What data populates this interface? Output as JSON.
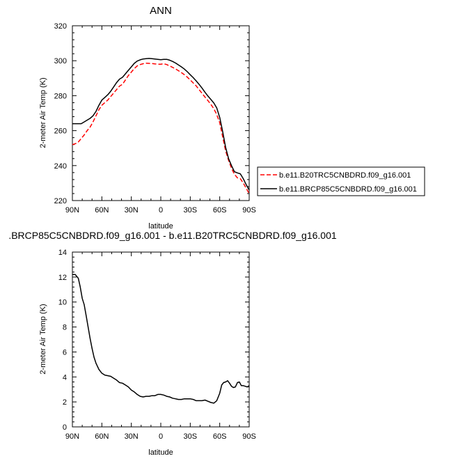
{
  "chart_data": [
    {
      "type": "line",
      "title": "ANN",
      "xlabel": "latitude",
      "ylabel": "2-meter Air Temp (K)",
      "xlim": [
        90,
        -90
      ],
      "ylim": [
        220,
        320
      ],
      "x_ticks": [
        90,
        60,
        30,
        0,
        -30,
        -60,
        -90
      ],
      "x_tick_labels": [
        "90N",
        "60N",
        "30N",
        "0",
        "30S",
        "60S",
        "90S"
      ],
      "y_ticks": [
        220,
        240,
        260,
        280,
        300,
        320
      ],
      "y_tick_labels": [
        "220",
        "240",
        "260",
        "280",
        "300",
        "320"
      ],
      "legend_position": "right",
      "series": [
        {
          "name": "b.e11.B20TRC5CNBDRD.f09_g16.001",
          "color": "#ff0000",
          "dash": "dashed",
          "x": [
            90,
            87,
            84,
            81,
            78,
            75,
            72,
            69,
            66,
            63,
            60,
            57,
            54,
            51,
            48,
            45,
            42,
            39,
            36,
            33,
            30,
            27,
            24,
            21,
            18,
            15,
            12,
            9,
            6,
            3,
            0,
            -3,
            -6,
            -9,
            -12,
            -15,
            -18,
            -21,
            -24,
            -27,
            -30,
            -33,
            -36,
            -39,
            -42,
            -45,
            -48,
            -51,
            -54,
            -57,
            -60,
            -63,
            -66,
            -69,
            -72,
            -75,
            -78,
            -81,
            -84,
            -87,
            -90
          ],
          "y": [
            252,
            252.5,
            253.5,
            255.5,
            257.5,
            260,
            262,
            265,
            268.5,
            272,
            274.5,
            276,
            277.5,
            279.5,
            281.5,
            283.5,
            285.5,
            286.5,
            289,
            291.5,
            293.5,
            295.5,
            297,
            297.8,
            298.3,
            298.6,
            298.5,
            298.4,
            298.2,
            298,
            298,
            298.3,
            297.8,
            297,
            296.2,
            295.3,
            294.3,
            293.2,
            292,
            290.6,
            289,
            287.3,
            285.6,
            283.5,
            281.3,
            279.2,
            277.2,
            275,
            272.5,
            269.2,
            264.5,
            256.5,
            248.5,
            243,
            238.5,
            235,
            233,
            232.5,
            230,
            227,
            224
          ]
        },
        {
          "name": "b.e11.BRCP85C5CNBDRD.f09_g16.001",
          "color": "#000000",
          "dash": "solid",
          "x": [
            90,
            87,
            84,
            81,
            78,
            75,
            72,
            69,
            66,
            63,
            60,
            57,
            54,
            51,
            48,
            45,
            42,
            39,
            36,
            33,
            30,
            27,
            24,
            21,
            18,
            15,
            12,
            9,
            6,
            3,
            0,
            -3,
            -6,
            -9,
            -12,
            -15,
            -18,
            -21,
            -24,
            -27,
            -30,
            -33,
            -36,
            -39,
            -42,
            -45,
            -48,
            -51,
            -54,
            -57,
            -60,
            -63,
            -66,
            -69,
            -72,
            -75,
            -78,
            -81,
            -84,
            -87,
            -90
          ],
          "y": [
            264,
            264,
            264,
            264,
            265,
            266,
            267,
            268.5,
            271,
            274.5,
            277.5,
            279,
            280.5,
            282.5,
            285,
            287.5,
            289.5,
            290.5,
            292.5,
            294.5,
            296.5,
            298.5,
            299.8,
            300.5,
            301,
            301.2,
            301.3,
            301.2,
            301,
            300.8,
            300.6,
            300.8,
            300.8,
            300.3,
            299.6,
            298.7,
            297.6,
            296.5,
            295.2,
            293.7,
            292,
            290.3,
            288.5,
            286.5,
            284.3,
            282,
            279.8,
            277.8,
            275.8,
            273,
            267.5,
            259.5,
            250.5,
            244,
            240,
            236.5,
            235.8,
            235.3,
            232.5,
            229,
            226
          ]
        }
      ]
    },
    {
      "type": "line",
      "title": ".BRCP85C5CNBDRD.f09_g16.001 - b.e11.B20TRC5CNBDRD.f09_g16.001",
      "xlabel": "latitude",
      "ylabel": "2-meter Air Temp (K)",
      "xlim": [
        90,
        -90
      ],
      "ylim": [
        0,
        14
      ],
      "x_ticks": [
        90,
        60,
        30,
        0,
        -30,
        -60,
        -90
      ],
      "x_tick_labels": [
        "90N",
        "60N",
        "30N",
        "0",
        "30S",
        "60S",
        "90S"
      ],
      "y_ticks": [
        0,
        2,
        4,
        6,
        8,
        10,
        12,
        14
      ],
      "y_tick_labels": [
        "0",
        "2",
        "4",
        "6",
        "8",
        "10",
        "12",
        "14"
      ],
      "series": [
        {
          "color": "#000000",
          "dash": "solid",
          "x": [
            90,
            87,
            84,
            82,
            80,
            78,
            76,
            74,
            72,
            70,
            68,
            66,
            63,
            60,
            57,
            54,
            51,
            48,
            45,
            42,
            39,
            36,
            33,
            30,
            27,
            24,
            21,
            18,
            15,
            12,
            9,
            6,
            3,
            0,
            -3,
            -6,
            -9,
            -12,
            -15,
            -18,
            -21,
            -24,
            -27,
            -30,
            -33,
            -36,
            -39,
            -42,
            -45,
            -48,
            -51,
            -54,
            -57,
            -60,
            -62,
            -64,
            -66,
            -68,
            -70,
            -72,
            -74,
            -76,
            -78,
            -80,
            -82,
            -84,
            -86,
            -88,
            -90
          ],
          "y": [
            12.2,
            12.2,
            11.9,
            11.2,
            10.3,
            9.8,
            8.9,
            8.0,
            7.1,
            6.3,
            5.6,
            5.1,
            4.6,
            4.3,
            4.15,
            4.1,
            4.05,
            3.9,
            3.75,
            3.55,
            3.5,
            3.35,
            3.2,
            2.95,
            2.8,
            2.6,
            2.45,
            2.4,
            2.45,
            2.45,
            2.5,
            2.5,
            2.6,
            2.6,
            2.55,
            2.45,
            2.4,
            2.3,
            2.25,
            2.2,
            2.2,
            2.25,
            2.25,
            2.25,
            2.2,
            2.1,
            2.1,
            2.1,
            2.15,
            2.05,
            1.95,
            1.9,
            2.1,
            2.7,
            3.35,
            3.55,
            3.6,
            3.7,
            3.5,
            3.25,
            3.15,
            3.2,
            3.55,
            3.6,
            3.3,
            3.3,
            3.25,
            3.2,
            3.3
          ]
        }
      ]
    }
  ]
}
